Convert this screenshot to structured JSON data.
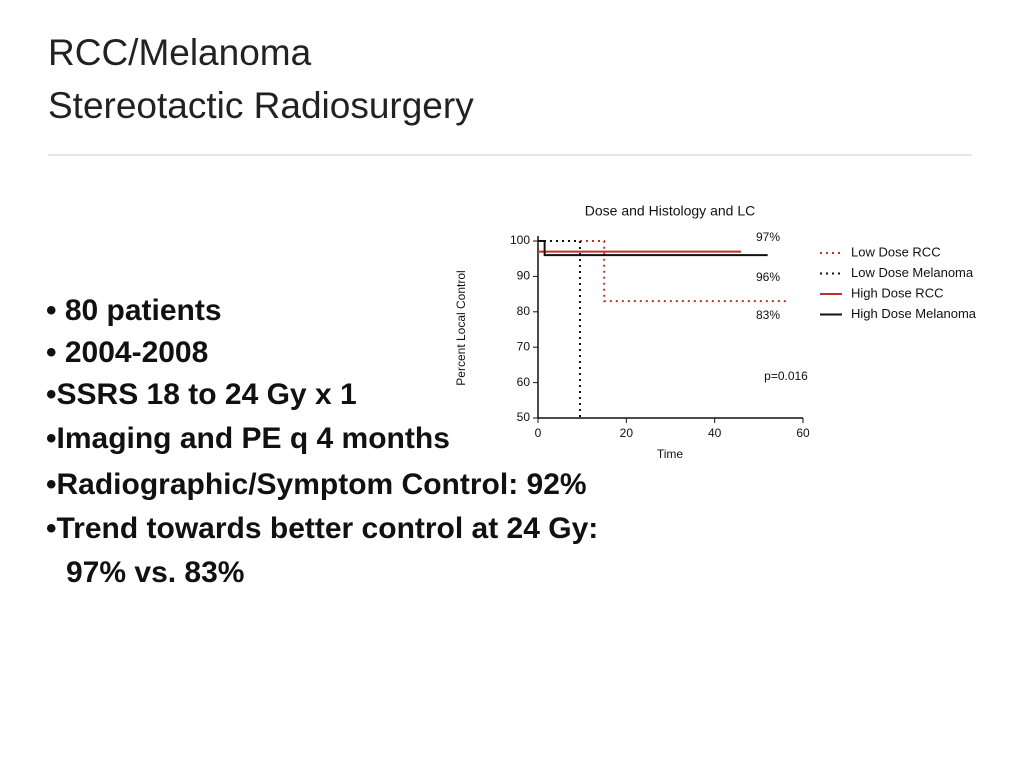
{
  "header": {
    "title": "RCC/Melanoma",
    "subtitle": "Stereotactic Radiosurgery"
  },
  "bullets": [
    "• 80 patients",
    "• 2004-2008",
    "•SSRS 18 to 24 Gy x 1",
    "•Imaging and PE q 4 months",
    "•Radiographic/Symptom Control: 92%",
    "•Trend towards better control at 24 Gy:",
    "97% vs. 83%"
  ],
  "chart_data": {
    "type": "step",
    "title": "Dose and Histology and LC",
    "x_label": "Time",
    "y_label": "Percent Local Control",
    "xlim": [
      0,
      60
    ],
    "xticks": [
      0,
      20,
      40,
      60
    ],
    "ylim": [
      50,
      100
    ],
    "yticks": [
      50,
      60,
      70,
      80,
      90,
      100
    ],
    "legend": "right",
    "annotations": [
      "97%",
      "96%",
      "83%",
      "p=0.016"
    ],
    "series": [
      {
        "name": "Low Dose RCC",
        "color": "#c0302b",
        "dashed": true,
        "x": [
          0,
          15,
          15,
          57
        ],
        "values": [
          100,
          100,
          83,
          83
        ]
      },
      {
        "name": "Low Dose Melanoma",
        "color": "#111111",
        "dashed": true,
        "x": [
          0,
          9.5,
          9.5
        ],
        "values": [
          100,
          100,
          50
        ]
      },
      {
        "name": "High Dose RCC",
        "color": "#c0302b",
        "dashed": false,
        "x": [
          0,
          46
        ],
        "values": [
          97,
          97
        ]
      },
      {
        "name": "High Dose Melanoma",
        "color": "#111111",
        "dashed": false,
        "x": [
          0,
          1.5,
          1.5,
          52
        ],
        "values": [
          100,
          100,
          96,
          96
        ]
      }
    ]
  }
}
